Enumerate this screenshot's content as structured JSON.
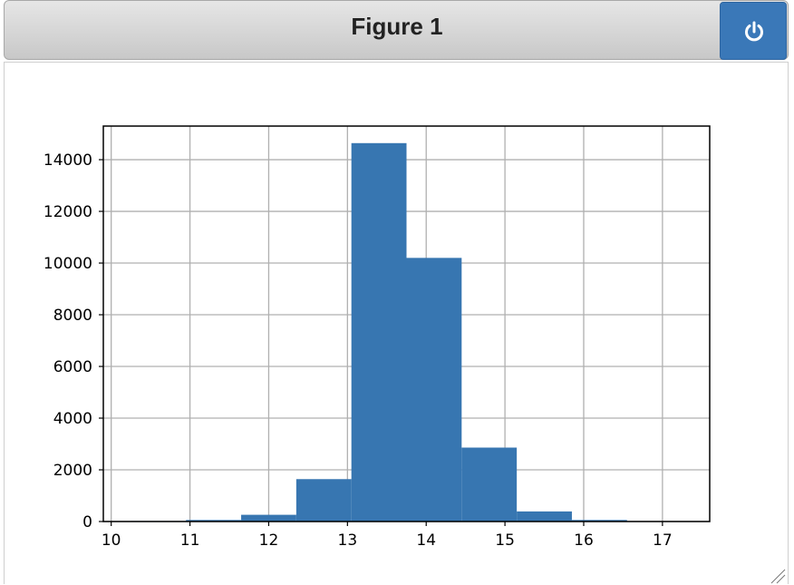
{
  "window": {
    "title": "Figure 1"
  },
  "icons": {
    "power": "power-icon",
    "resize": "resize-grip-icon"
  },
  "colors": {
    "bar": "#3776b1",
    "grid": "#b0b0b0",
    "accent": "#3a78b8"
  },
  "chart_data": {
    "type": "bar",
    "title": "",
    "xlabel": "",
    "ylabel": "",
    "xlim": [
      9.9,
      17.6
    ],
    "ylim": [
      0,
      15300
    ],
    "grid": true,
    "x_ticks": [
      10,
      11,
      12,
      13,
      14,
      15,
      16,
      17
    ],
    "y_ticks": [
      0,
      2000,
      4000,
      6000,
      8000,
      10000,
      12000,
      14000
    ],
    "bins": [
      {
        "x0": 10.25,
        "x1": 10.95,
        "value": 20
      },
      {
        "x0": 10.95,
        "x1": 11.65,
        "value": 60
      },
      {
        "x0": 11.65,
        "x1": 12.35,
        "value": 260
      },
      {
        "x0": 12.35,
        "x1": 13.05,
        "value": 1640
      },
      {
        "x0": 13.05,
        "x1": 13.75,
        "value": 14640
      },
      {
        "x0": 13.75,
        "x1": 14.45,
        "value": 10200
      },
      {
        "x0": 14.45,
        "x1": 15.15,
        "value": 2860
      },
      {
        "x0": 15.15,
        "x1": 15.85,
        "value": 390
      },
      {
        "x0": 15.85,
        "x1": 16.55,
        "value": 60
      },
      {
        "x0": 16.55,
        "x1": 17.25,
        "value": 10
      }
    ]
  }
}
